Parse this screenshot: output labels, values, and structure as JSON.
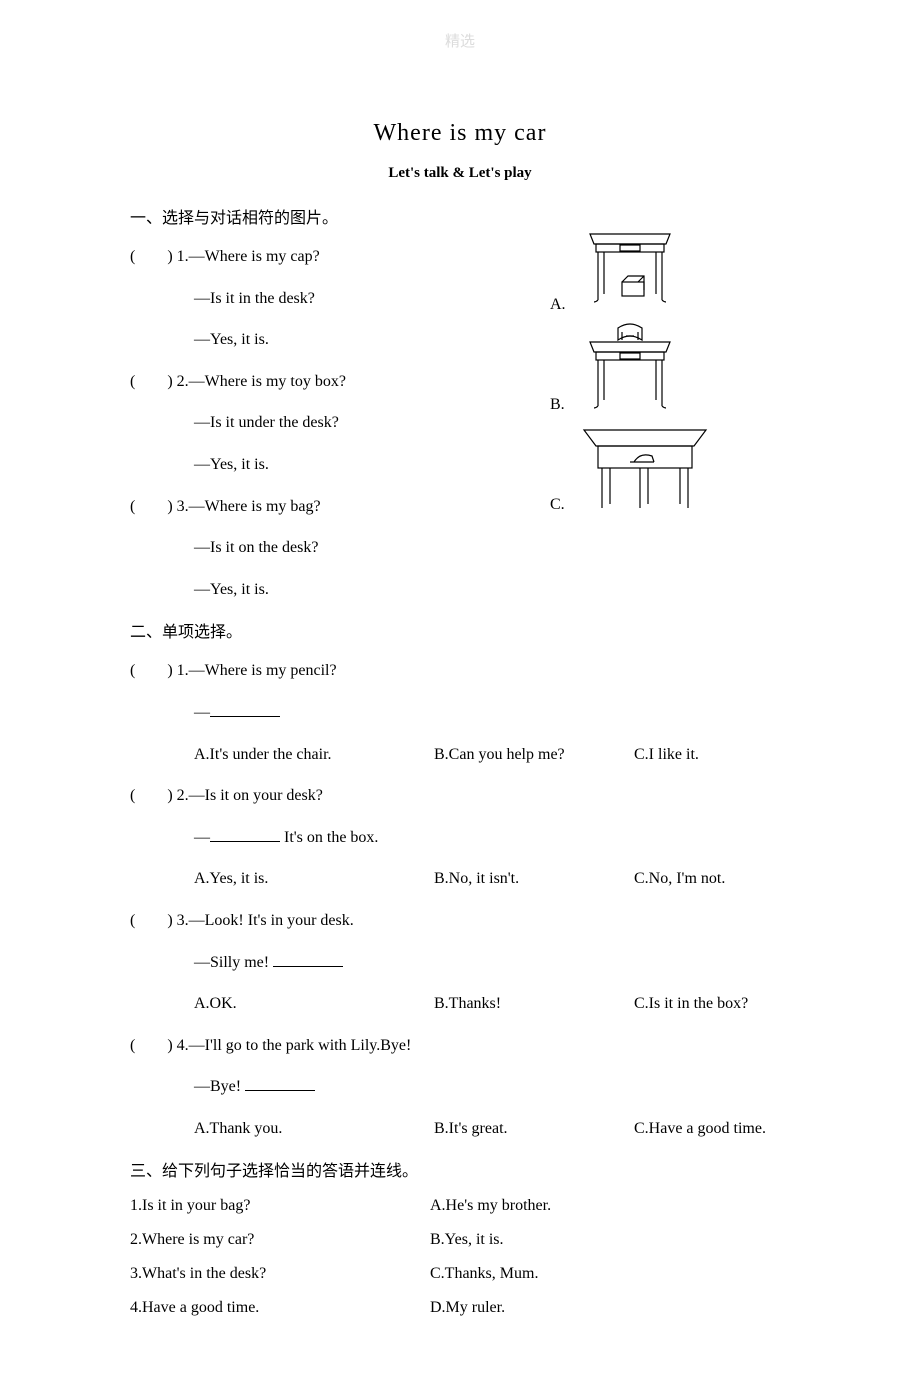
{
  "watermark": "精选",
  "title": "Where is my car",
  "subtitle": "Let's talk & Let's play",
  "section1": {
    "heading": "一、选择与对话相符的图片。",
    "items": [
      {
        "num": "1",
        "q": "Where is my cap?",
        "a": "Is it in the desk?",
        "r": "Yes, it is."
      },
      {
        "num": "2",
        "q": "Where is my toy box?",
        "a": "Is it under the desk?",
        "r": "Yes, it is."
      },
      {
        "num": "3",
        "q": "Where is my bag?",
        "a": "Is it on the desk?",
        "r": "Yes, it is."
      }
    ],
    "imgLabels": {
      "a": "A.",
      "b": "B.",
      "c": "C."
    }
  },
  "section2": {
    "heading": "二、单项选择。",
    "items": [
      {
        "num": "1",
        "stem1": "—Where is my pencil?",
        "stem2": "—",
        "blankAfterStem2": true,
        "opts": {
          "a": "A.It's under the chair.",
          "b": "B.Can you help me?",
          "c": "C.I like it."
        }
      },
      {
        "num": "2",
        "stem1": "—Is it on your desk?",
        "stem2pre": "—",
        "stem2post": " It's on the box.",
        "blankMid": true,
        "opts": {
          "a": "A.Yes, it is.",
          "b": "B.No, it isn't.",
          "c": "C.No, I'm not."
        }
      },
      {
        "num": "3",
        "stem1": "—Look! It's in your desk.",
        "stem2": "—Silly me! ",
        "blankAfterStem2Tail": true,
        "opts": {
          "a": "A.OK.",
          "b": "B.Thanks!",
          "c": "C.Is it in the box?"
        }
      },
      {
        "num": "4",
        "stem1": "—I'll go to the park with Lily.Bye!",
        "stem2": "—Bye! ",
        "blankAfterStem2Tail": true,
        "opts": {
          "a": "A.Thank you.",
          "b": "B.It's great.",
          "c": "C.Have a good time."
        }
      }
    ]
  },
  "section3": {
    "heading": "三、给下列句子选择恰当的答语并连线。",
    "rows": [
      {
        "q": "1.Is it in your bag?",
        "a": "A.He's my brother."
      },
      {
        "q": "2.Where is my car?",
        "a": "B.Yes, it is."
      },
      {
        "q": "3.What's in the desk?",
        "a": "C.Thanks, Mum."
      },
      {
        "q": "4.Have a good time.",
        "a": "D.My ruler."
      }
    ]
  },
  "paren": {
    "open": "(",
    "close": ")"
  },
  "dash": "—",
  "footnote": "."
}
